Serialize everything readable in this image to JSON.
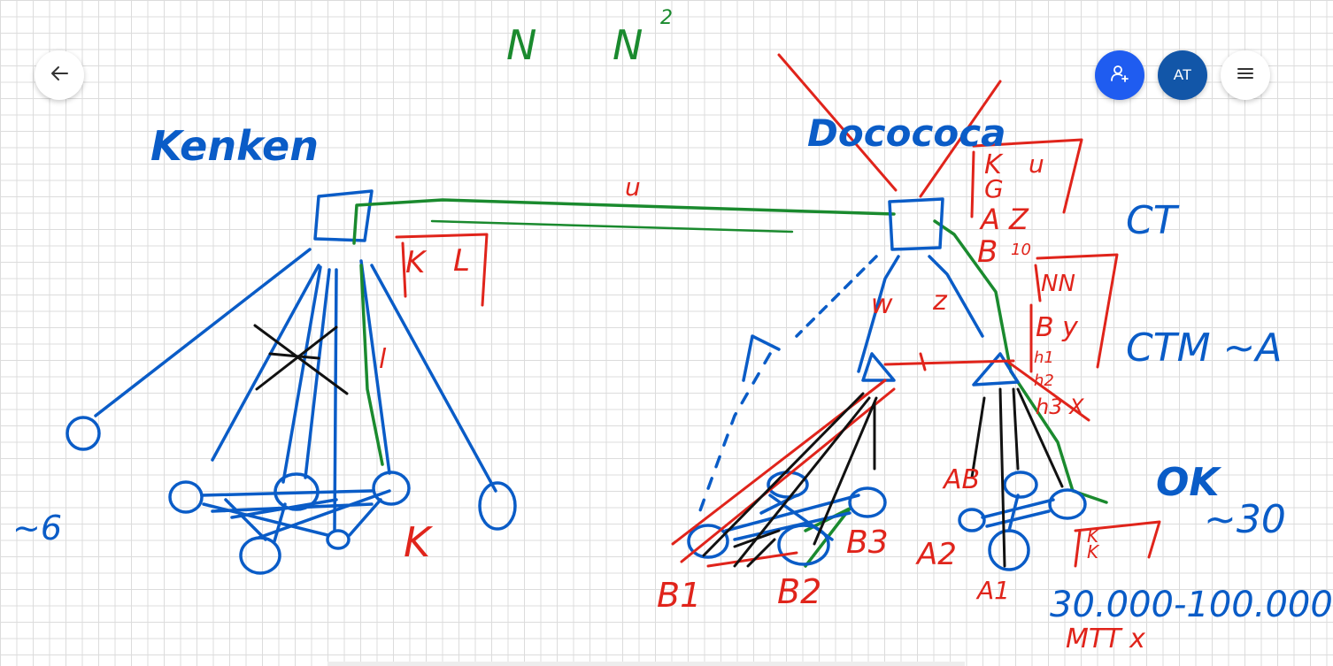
{
  "toolbar": {
    "back_icon": "arrow-left-icon",
    "invite_icon": "person-add-icon",
    "avatar_initials": "AT",
    "menu_icon": "hamburger-menu-icon",
    "colors": {
      "invite": "#1f5cf0",
      "avatar": "#1256a8"
    }
  },
  "whiteboard": {
    "pen_colors": {
      "blue": "#0a5cc7",
      "red": "#e0241b",
      "green": "#1a8a2e",
      "black": "#111111"
    },
    "annotations": {
      "top_n": "N",
      "top_n_squared": "N",
      "exponent": "2",
      "left_cluster_label": "Kenken",
      "right_cluster_label": "Docococa",
      "link_label": "u",
      "box_k": "K",
      "box_l": "L",
      "l_label": "l",
      "k_label": "K",
      "approx_6": "~6",
      "side_k": "K",
      "side_g": "G",
      "side_a": "A",
      "side_z": "Z",
      "side_b": "B",
      "side_10": "10",
      "side_u": "u",
      "w_label": "w",
      "z_label": "z",
      "nn_label": "NN",
      "by_label": "B y",
      "h1": "h1",
      "h2": "h2",
      "h3x": "h3 X",
      "ct": "CT",
      "ctm": "CTM ~A",
      "ok": "OK",
      "approx_30": "~30",
      "ab": "AB",
      "a2": "A2",
      "a1": "A1",
      "b1": "B1",
      "b2": "B2",
      "b3": "B3",
      "range": "30.000-100.000",
      "mtt": "MTT x",
      "box_k2": "K",
      "box_k3": "K"
    }
  }
}
